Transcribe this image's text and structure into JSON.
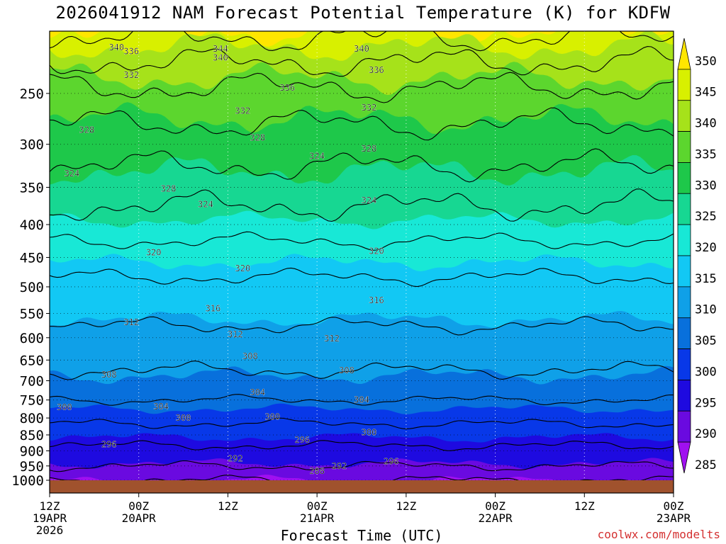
{
  "title": "2026041912 NAM Forecast Potential Temperature (K) for KDFW",
  "credit": "coolwx.com/modelts",
  "chart_data": {
    "type": "heatmap",
    "title": "2026041912 NAM Forecast Potential Temperature (K) for KDFW",
    "xlabel": "Forecast Time (UTC)",
    "ylabel": "",
    "x_unit": "hours",
    "xlim": [
      0,
      84
    ],
    "ylim": [
      1000,
      200
    ],
    "y_scale": "log",
    "y_ticks": [
      250,
      300,
      350,
      400,
      450,
      500,
      550,
      600,
      650,
      700,
      750,
      800,
      850,
      900,
      950,
      1000
    ],
    "x_ticks": [
      {
        "x": 0,
        "lines": [
          "12Z",
          "19APR",
          "2026"
        ]
      },
      {
        "x": 12,
        "lines": [
          "00Z",
          "20APR"
        ]
      },
      {
        "x": 24,
        "lines": [
          "12Z"
        ]
      },
      {
        "x": 36,
        "lines": [
          "00Z",
          "21APR"
        ]
      },
      {
        "x": 48,
        "lines": [
          "12Z"
        ]
      },
      {
        "x": 60,
        "lines": [
          "00Z",
          "22APR"
        ]
      },
      {
        "x": 72,
        "lines": [
          "12Z"
        ]
      },
      {
        "x": 84,
        "lines": [
          "00Z",
          "23APR"
        ]
      }
    ],
    "colorbar": {
      "labels": [
        350,
        345,
        340,
        335,
        330,
        325,
        320,
        315,
        310,
        305,
        300,
        295,
        290,
        285
      ],
      "colors": [
        "#ffe600",
        "#d8f000",
        "#a6e21a",
        "#5cd62e",
        "#1ec84a",
        "#17d792",
        "#18e8d6",
        "#12c8f4",
        "#0fa0e8",
        "#0870dc",
        "#0838e8",
        "#1e0ae0",
        "#6a0ae0",
        "#a010f0"
      ]
    },
    "theta_bands": [
      285,
      290,
      295,
      300,
      305,
      310,
      315,
      320,
      325,
      330,
      335,
      340,
      345,
      350
    ],
    "theta_profile": [
      {
        "p": 1000,
        "theta": 288
      },
      {
        "p": 950,
        "theta": 292
      },
      {
        "p": 900,
        "theta": 295
      },
      {
        "p": 850,
        "theta": 298
      },
      {
        "p": 800,
        "theta": 301
      },
      {
        "p": 750,
        "theta": 304
      },
      {
        "p": 700,
        "theta": 307
      },
      {
        "p": 650,
        "theta": 309
      },
      {
        "p": 600,
        "theta": 311
      },
      {
        "p": 550,
        "theta": 313
      },
      {
        "p": 500,
        "theta": 315
      },
      {
        "p": 450,
        "theta": 318
      },
      {
        "p": 400,
        "theta": 322
      },
      {
        "p": 350,
        "theta": 326
      },
      {
        "p": 300,
        "theta": 330
      },
      {
        "p": 250,
        "theta": 335
      },
      {
        "p": 200,
        "theta": 345
      }
    ],
    "contour_levels": [
      288,
      292,
      296,
      300,
      304,
      308,
      312,
      316,
      320,
      324,
      328,
      332,
      336,
      340,
      344
    ],
    "contour_labels": [
      {
        "text": "340",
        "x": 9,
        "p": 212
      },
      {
        "text": "336",
        "x": 11,
        "p": 215
      },
      {
        "text": "344",
        "x": 23,
        "p": 213
      },
      {
        "text": "340",
        "x": 23,
        "p": 220
      },
      {
        "text": "340",
        "x": 42,
        "p": 213
      },
      {
        "text": "336",
        "x": 44,
        "p": 230
      },
      {
        "text": "332",
        "x": 11,
        "p": 234
      },
      {
        "text": "336",
        "x": 32,
        "p": 245
      },
      {
        "text": "332",
        "x": 26,
        "p": 266
      },
      {
        "text": "332",
        "x": 43,
        "p": 263
      },
      {
        "text": "328",
        "x": 5,
        "p": 285
      },
      {
        "text": "328",
        "x": 28,
        "p": 293
      },
      {
        "text": "328",
        "x": 43,
        "p": 305
      },
      {
        "text": "324",
        "x": 36,
        "p": 313
      },
      {
        "text": "324",
        "x": 3,
        "p": 333
      },
      {
        "text": "328",
        "x": 16,
        "p": 352
      },
      {
        "text": "324",
        "x": 21,
        "p": 372
      },
      {
        "text": "324",
        "x": 43,
        "p": 367
      },
      {
        "text": "320",
        "x": 14,
        "p": 442
      },
      {
        "text": "320",
        "x": 26,
        "p": 468
      },
      {
        "text": "320",
        "x": 44,
        "p": 440
      },
      {
        "text": "316",
        "x": 22,
        "p": 540
      },
      {
        "text": "316",
        "x": 44,
        "p": 525
      },
      {
        "text": "312",
        "x": 11,
        "p": 568
      },
      {
        "text": "312",
        "x": 25,
        "p": 593
      },
      {
        "text": "312",
        "x": 38,
        "p": 602
      },
      {
        "text": "308",
        "x": 27,
        "p": 641
      },
      {
        "text": "308",
        "x": 8,
        "p": 685
      },
      {
        "text": "308",
        "x": 40,
        "p": 675
      },
      {
        "text": "304",
        "x": 28,
        "p": 730
      },
      {
        "text": "304",
        "x": 15,
        "p": 768
      },
      {
        "text": "304",
        "x": 42,
        "p": 750
      },
      {
        "text": "300",
        "x": 2,
        "p": 770
      },
      {
        "text": "300",
        "x": 18,
        "p": 800
      },
      {
        "text": "300",
        "x": 30,
        "p": 797
      },
      {
        "text": "300",
        "x": 43,
        "p": 843
      },
      {
        "text": "296",
        "x": 8,
        "p": 880
      },
      {
        "text": "296",
        "x": 34,
        "p": 865
      },
      {
        "text": "292",
        "x": 25,
        "p": 925
      },
      {
        "text": "292",
        "x": 39,
        "p": 950
      },
      {
        "text": "296",
        "x": 46,
        "p": 935
      },
      {
        "text": "288",
        "x": 36,
        "p": 968
      }
    ]
  }
}
